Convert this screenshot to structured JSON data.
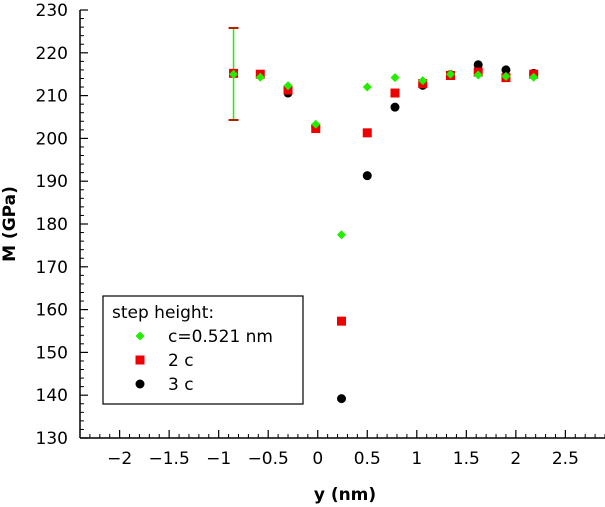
{
  "chart_data": {
    "type": "scatter",
    "title": "",
    "xlabel": "y (nm)",
    "ylabel": "M (GPa)",
    "xlim": [
      -2.4,
      2.9
    ],
    "ylim": [
      130,
      230
    ],
    "x_ticks": [
      -2,
      -1.5,
      -1,
      -0.5,
      0,
      0.5,
      1,
      1.5,
      2,
      2.5
    ],
    "x_tick_labels": [
      "−2",
      "−1.5",
      "−1",
      "−0.5",
      "0",
      "0.5",
      "1",
      "1.5",
      "2",
      "2.5"
    ],
    "y_ticks": [
      130,
      140,
      150,
      160,
      170,
      180,
      190,
      200,
      210,
      220,
      230
    ],
    "y_tick_labels": [
      "130",
      "140",
      "150",
      "160",
      "170",
      "180",
      "190",
      "200",
      "210",
      "220",
      "230"
    ],
    "legend_title": "step height:",
    "legend_position": "bottom-left",
    "grid": false,
    "series": [
      {
        "name": "c=0.521 nm",
        "marker": "diamond",
        "color": "#22ee00",
        "x": [
          -0.85,
          -0.58,
          -0.3,
          -0.02,
          0.24,
          0.5,
          0.78,
          1.06,
          1.34,
          1.62,
          1.9,
          2.18
        ],
        "y": [
          215.0,
          214.3,
          212.3,
          203.3,
          177.5,
          212.0,
          214.2,
          213.5,
          215.0,
          214.8,
          214.5,
          214.3
        ]
      },
      {
        "name": "2 c",
        "marker": "square",
        "color": "#ee0000",
        "x": [
          -0.85,
          -0.58,
          -0.3,
          -0.02,
          0.24,
          0.5,
          0.78,
          1.06,
          1.34,
          1.62,
          1.9,
          2.18
        ],
        "y": [
          215.2,
          215.0,
          211.3,
          202.3,
          157.3,
          201.3,
          210.6,
          212.8,
          214.7,
          215.5,
          214.2,
          215.0
        ]
      },
      {
        "name": "3 c",
        "marker": "circle",
        "color": "#000000",
        "x": [
          -0.3,
          -0.02,
          0.24,
          0.5,
          0.78,
          1.06,
          1.34,
          1.62,
          1.9,
          2.18
        ],
        "y": [
          210.6,
          202.8,
          139.2,
          191.3,
          207.3,
          212.4,
          214.9,
          217.2,
          216.0,
          215.2
        ]
      }
    ],
    "error_bar": {
      "x": -0.85,
      "y_low": 204.3,
      "y_high": 225.8,
      "color": "#22ee00"
    }
  }
}
